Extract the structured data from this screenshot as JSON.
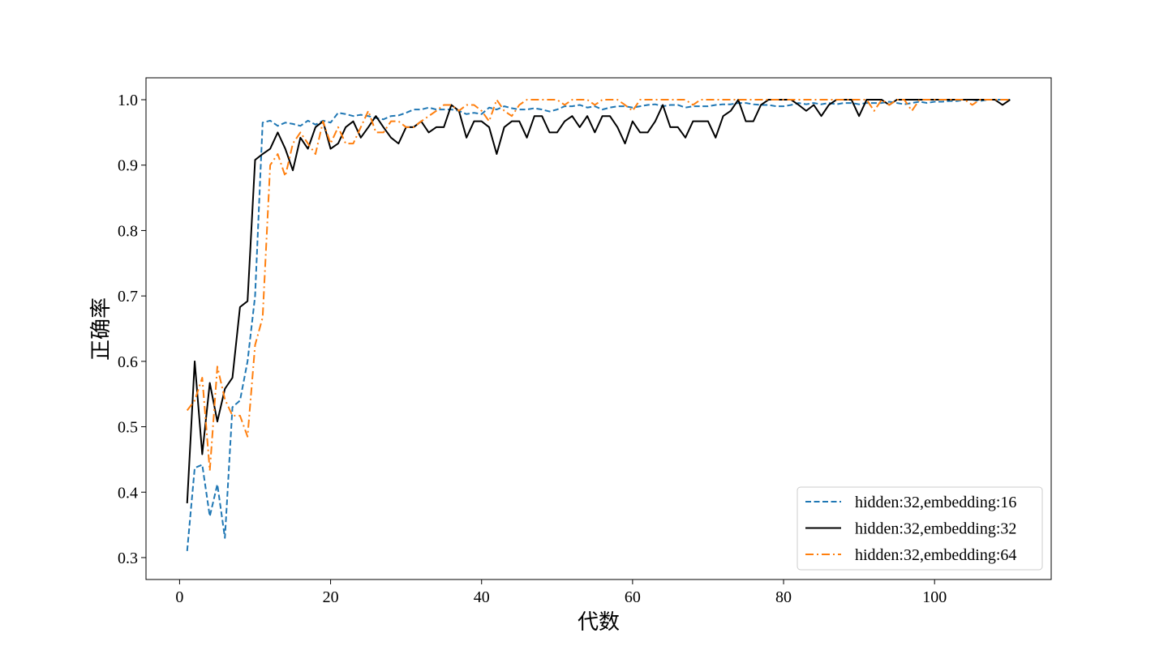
{
  "chart_data": {
    "type": "line",
    "title": "",
    "xlabel": "代数",
    "ylabel": "正确率",
    "xlim": [
      -4.45,
      115.45
    ],
    "ylim": [
      0.2665,
      1.0335
    ],
    "xticks": [
      0,
      20,
      40,
      60,
      80,
      100
    ],
    "yticks": [
      0.3,
      0.4,
      0.5,
      0.6,
      0.7,
      0.8,
      0.9,
      1.0
    ],
    "xtick_labels": [
      "0",
      "20",
      "40",
      "60",
      "80",
      "100"
    ],
    "ytick_labels": [
      "0.3",
      "0.4",
      "0.5",
      "0.6",
      "0.7",
      "0.8",
      "0.9",
      "1.0"
    ],
    "grid": false,
    "legend": {
      "position": "bottom-right"
    },
    "x_start": 1,
    "series": [
      {
        "name": "hidden:32,embedding:16",
        "color": "#1f77b4",
        "dash": "dashed",
        "values": [
          0.31,
          0.437,
          0.442,
          0.363,
          0.412,
          0.33,
          0.53,
          0.54,
          0.6,
          0.7,
          0.965,
          0.968,
          0.96,
          0.965,
          0.963,
          0.96,
          0.968,
          0.962,
          0.968,
          0.965,
          0.98,
          0.978,
          0.975,
          0.977,
          0.975,
          0.972,
          0.97,
          0.975,
          0.976,
          0.98,
          0.985,
          0.985,
          0.988,
          0.985,
          0.985,
          0.985,
          0.983,
          0.978,
          0.98,
          0.978,
          0.988,
          0.985,
          0.99,
          0.987,
          0.985,
          0.985,
          0.987,
          0.985,
          0.982,
          0.985,
          0.99,
          0.99,
          0.992,
          0.988,
          0.99,
          0.985,
          0.988,
          0.99,
          0.99,
          0.988,
          0.99,
          0.992,
          0.993,
          0.99,
          0.992,
          0.992,
          0.988,
          0.99,
          0.99,
          0.99,
          0.992,
          0.993,
          0.993,
          0.995,
          0.995,
          0.993,
          0.992,
          0.992,
          0.99,
          0.99,
          0.992,
          0.995,
          0.993,
          0.995,
          0.993,
          0.995,
          0.993,
          0.995,
          0.995,
          0.993,
          0.995,
          0.995,
          0.995,
          0.997,
          0.995,
          0.993,
          0.995,
          0.997,
          0.995,
          0.997,
          0.997,
          0.998,
          0.998,
          1.0,
          1.0,
          0.998,
          1.0,
          1.0,
          1.0,
          1.0
        ]
      },
      {
        "name": "hidden:32,embedding:32",
        "color": "#000000",
        "dash": "solid",
        "values": [
          0.383,
          0.6,
          0.458,
          0.567,
          0.508,
          0.558,
          0.575,
          0.683,
          0.692,
          0.908,
          0.917,
          0.925,
          0.95,
          0.925,
          0.892,
          0.942,
          0.925,
          0.958,
          0.967,
          0.925,
          0.933,
          0.958,
          0.967,
          0.942,
          0.958,
          0.975,
          0.958,
          0.942,
          0.933,
          0.958,
          0.958,
          0.967,
          0.95,
          0.958,
          0.958,
          0.992,
          0.983,
          0.942,
          0.967,
          0.967,
          0.958,
          0.917,
          0.958,
          0.967,
          0.967,
          0.942,
          0.975,
          0.975,
          0.95,
          0.95,
          0.967,
          0.975,
          0.958,
          0.975,
          0.95,
          0.975,
          0.975,
          0.958,
          0.933,
          0.967,
          0.95,
          0.95,
          0.967,
          0.992,
          0.958,
          0.958,
          0.942,
          0.967,
          0.967,
          0.967,
          0.942,
          0.975,
          0.983,
          1.0,
          0.967,
          0.967,
          0.992,
          1.0,
          1.0,
          1.0,
          1.0,
          0.992,
          0.983,
          0.992,
          0.975,
          0.992,
          1.0,
          1.0,
          1.0,
          0.975,
          1.0,
          1.0,
          1.0,
          0.992,
          1.0,
          1.0,
          1.0,
          1.0,
          1.0,
          1.0,
          1.0,
          1.0,
          1.0,
          1.0,
          1.0,
          1.0,
          1.0,
          1.0,
          0.992,
          1.0
        ]
      },
      {
        "name": "hidden:32,embedding:64",
        "color": "#ff7f0e",
        "dash": "dashdot",
        "values": [
          0.525,
          0.54,
          0.575,
          0.433,
          0.592,
          0.542,
          0.517,
          0.517,
          0.485,
          0.625,
          0.667,
          0.9,
          0.917,
          0.883,
          0.933,
          0.95,
          0.933,
          0.917,
          0.967,
          0.933,
          0.958,
          0.933,
          0.933,
          0.958,
          0.983,
          0.95,
          0.95,
          0.967,
          0.967,
          0.958,
          0.958,
          0.967,
          0.975,
          0.983,
          0.992,
          0.992,
          0.983,
          0.992,
          0.992,
          0.983,
          0.967,
          1.0,
          0.983,
          0.975,
          0.992,
          1.0,
          1.0,
          1.0,
          1.0,
          1.0,
          0.992,
          1.0,
          1.0,
          1.0,
          0.992,
          1.0,
          1.0,
          1.0,
          0.992,
          0.983,
          1.0,
          1.0,
          1.0,
          1.0,
          1.0,
          1.0,
          1.0,
          0.992,
          1.0,
          1.0,
          1.0,
          1.0,
          1.0,
          1.0,
          1.0,
          1.0,
          1.0,
          1.0,
          1.0,
          1.0,
          1.0,
          1.0,
          1.0,
          1.0,
          1.0,
          1.0,
          1.0,
          1.0,
          1.0,
          1.0,
          1.0,
          0.983,
          1.0,
          0.992,
          1.0,
          1.0,
          0.983,
          1.0,
          1.0,
          1.0,
          1.0,
          1.0,
          1.0,
          1.0,
          0.992,
          1.0,
          1.0,
          1.0,
          1.0,
          1.0
        ]
      }
    ]
  }
}
